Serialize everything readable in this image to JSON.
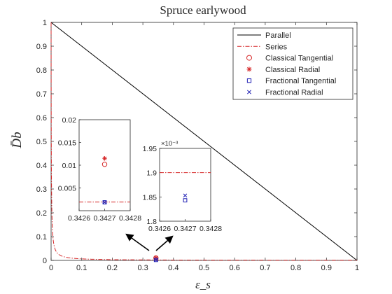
{
  "colors": {
    "parallel": "#000000",
    "series": "#d62728",
    "classical": "#d62728",
    "fractional": "#1f1fb4"
  },
  "chart_data": {
    "type": "line",
    "title": "Spruce earlywood",
    "xlabel": "ε_s",
    "ylabel": "D̄b",
    "xlim": [
      0,
      1
    ],
    "ylim": [
      0,
      1
    ],
    "xticks": [
      "0",
      "0.1",
      "0.2",
      "0.3",
      "0.4",
      "0.5",
      "0.6",
      "0.7",
      "0.8",
      "0.9",
      "1"
    ],
    "yticks": [
      "0",
      "0.1",
      "0.2",
      "0.3",
      "0.4",
      "0.5",
      "0.6",
      "0.7",
      "0.8",
      "0.9",
      "1"
    ],
    "legend_position": "top-right",
    "series": [
      {
        "name": "Parallel",
        "kind": "line",
        "x": [
          0,
          1
        ],
        "y": [
          1,
          0
        ]
      },
      {
        "name": "Series",
        "kind": "dashdot",
        "ratio": 0.00065
      },
      {
        "name": "Classical Tangential",
        "kind": "marker-circle",
        "x": [
          0.3427
        ],
        "y": [
          0.0102
        ]
      },
      {
        "name": "Classical Radial",
        "kind": "marker-star",
        "x": [
          0.3427
        ],
        "y": [
          0.0115
        ]
      },
      {
        "name": "Fractional Tangential",
        "kind": "marker-square",
        "x": [
          0.3427
        ],
        "y": [
          0.001843
        ]
      },
      {
        "name": "Fractional Radial",
        "kind": "marker-x",
        "x": [
          0.3427
        ],
        "y": [
          0.001853
        ]
      }
    ],
    "insets": [
      {
        "xlim": [
          0.3426,
          0.3428
        ],
        "ylim": [
          0,
          0.02
        ],
        "xticks": [
          "0.3426",
          "0.3427",
          "0.3428"
        ],
        "yticks": [
          "0.005",
          "0.01",
          "0.015",
          "0.02"
        ],
        "yvals": [
          0.005,
          0.01,
          0.015,
          0.02
        ],
        "series_y": 0.0019
      },
      {
        "xlim": [
          0.3426,
          0.3428
        ],
        "ylim": [
          0.0018,
          0.00195
        ],
        "xticks": [
          "0.3426",
          "0.3427",
          "0.3428"
        ],
        "yticks": [
          "1.8",
          "1.85",
          "1.9",
          "1.95"
        ],
        "yvals": [
          0.0018,
          0.00185,
          0.0019,
          0.00195
        ],
        "exponent_label": "×10⁻³",
        "series_y": 0.0019
      }
    ]
  }
}
